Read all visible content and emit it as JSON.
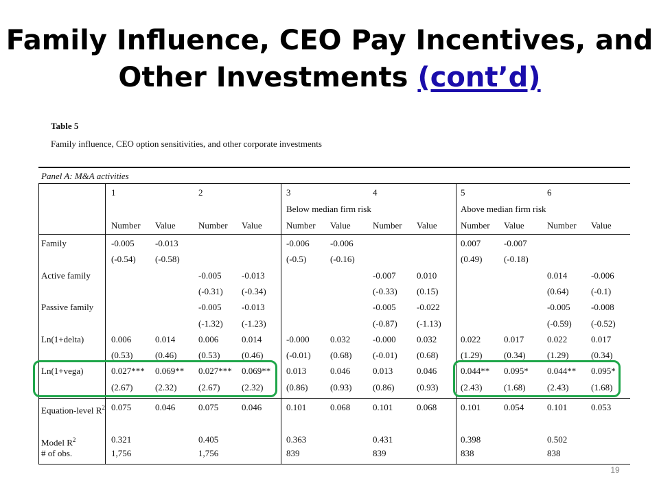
{
  "slide": {
    "title_main": "Family Influence, CEO Pay Incentives, and Other Investments ",
    "title_link": "(cont’d)",
    "page_number": "19"
  },
  "table": {
    "label": "Table 5",
    "caption": "Family influence, CEO option sensitivities, and other corporate investments",
    "panel": "Panel A: M&A activities",
    "column_numbers": [
      "1",
      "2",
      "3",
      "4",
      "5",
      "6"
    ],
    "group_labels": [
      "Below median firm risk",
      "Above median firm risk"
    ],
    "subheaders": [
      "Number",
      "Value",
      "Number",
      "Value",
      "Number",
      "Value",
      "Number",
      "Value",
      "Number",
      "Value",
      "Number",
      "Value"
    ],
    "rows": [
      {
        "label": "Family",
        "values": [
          "-0.005",
          "-0.013",
          "",
          "",
          "-0.006",
          "-0.006",
          "",
          "",
          "0.007",
          "-0.007",
          "",
          ""
        ]
      },
      {
        "label": "",
        "values": [
          "(-0.54)",
          "(-0.58)",
          "",
          "",
          "(-0.5)",
          "(-0.16)",
          "",
          "",
          "(0.49)",
          "(-0.18)",
          "",
          ""
        ]
      },
      {
        "label": "Active family",
        "values": [
          "",
          "",
          "-0.005",
          "-0.013",
          "",
          "",
          "-0.007",
          "0.010",
          "",
          "",
          "0.014",
          "-0.006"
        ]
      },
      {
        "label": "",
        "values": [
          "",
          "",
          "(-0.31)",
          "(-0.34)",
          "",
          "",
          "(-0.33)",
          "(0.15)",
          "",
          "",
          "(0.64)",
          "(-0.1)"
        ]
      },
      {
        "label": "Passive family",
        "values": [
          "",
          "",
          "-0.005",
          "-0.013",
          "",
          "",
          "-0.005",
          "-0.022",
          "",
          "",
          "-0.005",
          "-0.008"
        ]
      },
      {
        "label": "",
        "values": [
          "",
          "",
          "(-1.32)",
          "(-1.23)",
          "",
          "",
          "(-0.87)",
          "(-1.13)",
          "",
          "",
          "(-0.59)",
          "(-0.52)"
        ]
      },
      {
        "label": "Ln(1+delta)",
        "values": [
          "0.006",
          "0.014",
          "0.006",
          "0.014",
          "-0.000",
          "0.032",
          "-0.000",
          "0.032",
          "0.022",
          "0.017",
          "0.022",
          "0.017"
        ]
      },
      {
        "label": "",
        "values": [
          "(0.53)",
          "(0.46)",
          "(0.53)",
          "(0.46)",
          "(-0.01)",
          "(0.68)",
          "(-0.01)",
          "(0.68)",
          "(1.29)",
          "(0.34)",
          "(1.29)",
          "(0.34)"
        ]
      },
      {
        "label": "Ln(1+vega)",
        "values": [
          "0.027***",
          "0.069**",
          "0.027***",
          "0.069**",
          "0.013",
          "0.046",
          "0.013",
          "0.046",
          "0.044**",
          "0.095*",
          "0.044**",
          "0.095*"
        ]
      },
      {
        "label": "",
        "values": [
          "(2.67)",
          "(2.32)",
          "(2.67)",
          "(2.32)",
          "(0.86)",
          "(0.93)",
          "(0.86)",
          "(0.93)",
          "(2.43)",
          "(1.68)",
          "(2.43)",
          "(1.68)"
        ]
      }
    ],
    "eq_r2": {
      "label": "Equation-level R",
      "sup": "2",
      "values": [
        "0.075",
        "0.046",
        "0.075",
        "0.046",
        "0.101",
        "0.068",
        "0.101",
        "0.068",
        "0.101",
        "0.054",
        "0.101",
        "0.053"
      ]
    },
    "model_r2": {
      "label": "Model R",
      "sup": "2",
      "values": [
        "0.321",
        "0.405",
        "0.363",
        "0.431",
        "0.398",
        "0.502"
      ]
    },
    "obs": {
      "label": "# of obs.",
      "values": [
        "1,756",
        "1,756",
        "839",
        "839",
        "838",
        "838"
      ]
    }
  },
  "highlight_color": "#1fa64a",
  "link_color": "#1a0dab"
}
